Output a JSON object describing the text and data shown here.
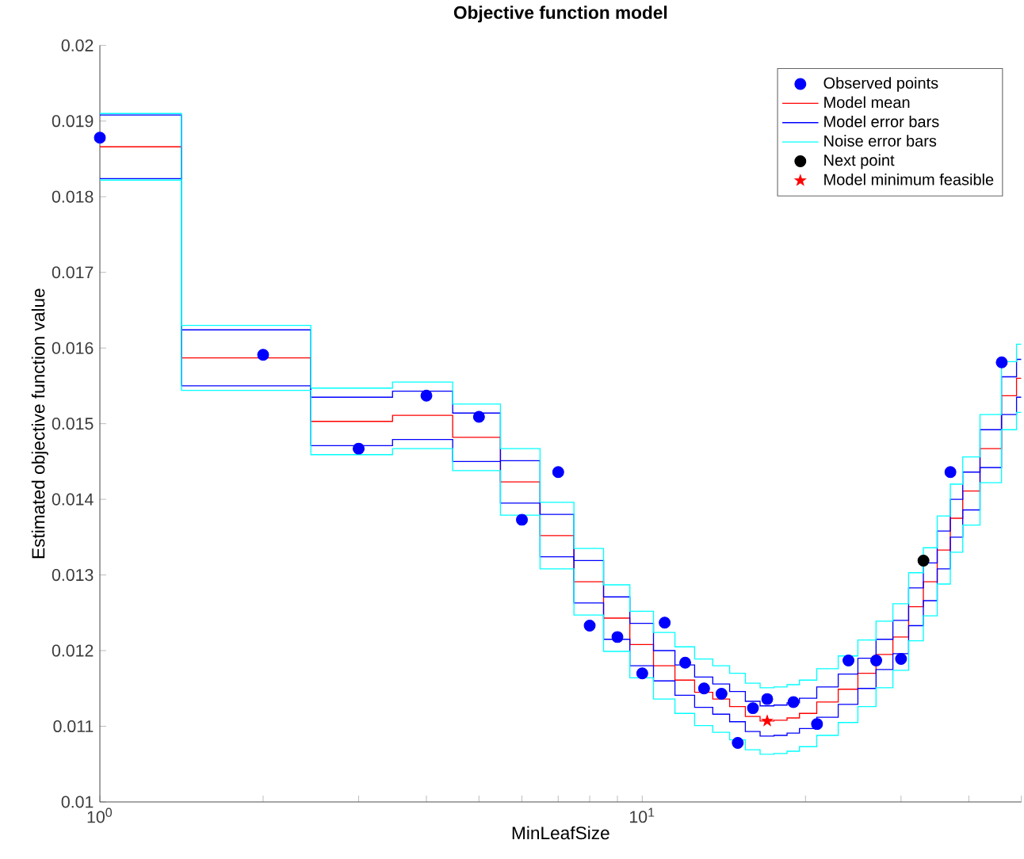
{
  "chart_data": {
    "type": "step",
    "title": "Objective function model",
    "xlabel": "MinLeafSize",
    "ylabel": "Estimated objective function value",
    "log": "x",
    "xlim": [
      1,
      50
    ],
    "ylim": [
      0.01,
      0.02
    ],
    "xticks": [
      {
        "value": 1,
        "label": "10$^{0}$"
      },
      {
        "value": 2,
        "label": null
      },
      {
        "value": 3,
        "label": null
      },
      {
        "value": 4,
        "label": null
      },
      {
        "value": 5,
        "label": null
      },
      {
        "value": 6,
        "label": null
      },
      {
        "value": 7,
        "label": null
      },
      {
        "value": 8,
        "label": null
      },
      {
        "value": 9,
        "label": null
      },
      {
        "value": 10,
        "label": "10$^{1}$"
      },
      {
        "value": 20,
        "label": null
      },
      {
        "value": 30,
        "label": null
      },
      {
        "value": 40,
        "label": null
      },
      {
        "value": 50,
        "label": null
      }
    ],
    "yticks": [
      0.01,
      0.011,
      0.012,
      0.013,
      0.014,
      0.015,
      0.016,
      0.017,
      0.018,
      0.019,
      0.02
    ],
    "legend": "top right",
    "grid": false,
    "series": [
      {
        "type": "scatter",
        "name": "Observed points",
        "color": "#0000ff",
        "marker": "circle",
        "x": [
          1,
          2,
          3,
          4,
          5,
          6,
          7,
          8,
          9,
          10,
          11,
          12,
          13,
          14,
          15,
          16,
          17,
          19,
          21,
          24,
          27,
          30,
          37,
          46
        ],
        "values": [
          0.01878,
          0.01591,
          0.01467,
          0.01537,
          0.01509,
          0.01373,
          0.01436,
          0.01233,
          0.01218,
          0.0117,
          0.01237,
          0.01184,
          0.0115,
          0.01143,
          0.01078,
          0.01124,
          0.01136,
          0.01132,
          0.01103,
          0.01187,
          0.01187,
          0.01189,
          0.01436,
          0.01581
        ]
      },
      {
        "name": "Model mean",
        "color": "#ff0000",
        "x": [
          1,
          2,
          3,
          4,
          5,
          6,
          7,
          8,
          9,
          10,
          11,
          12,
          13,
          14,
          15,
          16,
          17,
          18,
          19,
          20,
          22,
          24,
          26,
          28,
          30,
          32,
          34,
          36,
          38,
          40,
          44,
          48,
          50
        ],
        "values": [
          0.01866,
          0.01587,
          0.01503,
          0.01511,
          0.01482,
          0.01423,
          0.01352,
          0.01291,
          0.01243,
          0.01208,
          0.0118,
          0.01161,
          0.01145,
          0.01136,
          0.01126,
          0.01113,
          0.01107,
          0.01108,
          0.01111,
          0.01117,
          0.01132,
          0.01149,
          0.0117,
          0.01195,
          0.01218,
          0.01258,
          0.01291,
          0.01333,
          0.01375,
          0.01411,
          0.01467,
          0.01537,
          0.0156
        ]
      },
      {
        "name": "Model error bars",
        "color": "#0000ff",
        "x": [
          1,
          2,
          3,
          4,
          5,
          6,
          7,
          8,
          9,
          10,
          11,
          12,
          13,
          14,
          15,
          16,
          17,
          18,
          19,
          20,
          22,
          24,
          26,
          28,
          30,
          32,
          34,
          36,
          38,
          40,
          44,
          48,
          50
        ],
        "values": [
          0.01908,
          0.01624,
          0.01535,
          0.01543,
          0.01514,
          0.01451,
          0.0138,
          0.01319,
          0.01271,
          0.01236,
          0.012,
          0.01181,
          0.01165,
          0.01156,
          0.01146,
          0.01133,
          0.01127,
          0.01128,
          0.01131,
          0.01137,
          0.01152,
          0.01169,
          0.0119,
          0.01215,
          0.0124,
          0.01283,
          0.01316,
          0.01358,
          0.014,
          0.01436,
          0.01492,
          0.01562,
          0.01585
        ]
      },
      {
        "color": "#0000ff",
        "x": [
          1,
          2,
          3,
          4,
          5,
          6,
          7,
          8,
          9,
          10,
          11,
          12,
          13,
          14,
          15,
          16,
          17,
          18,
          19,
          20,
          22,
          24,
          26,
          28,
          30,
          32,
          34,
          36,
          38,
          40,
          44,
          48,
          50
        ],
        "values": [
          0.01824,
          0.0155,
          0.01471,
          0.01479,
          0.0145,
          0.01395,
          0.01324,
          0.01263,
          0.01215,
          0.0118,
          0.0116,
          0.01141,
          0.01125,
          0.01116,
          0.01106,
          0.01093,
          0.01087,
          0.01088,
          0.01091,
          0.01097,
          0.01112,
          0.01129,
          0.0115,
          0.01175,
          0.01196,
          0.01233,
          0.01266,
          0.01308,
          0.0135,
          0.01386,
          0.01442,
          0.01512,
          0.01535
        ]
      },
      {
        "name": "Noise error bars",
        "color": "#00ffff",
        "x": [
          1,
          2,
          3,
          4,
          5,
          6,
          7,
          8,
          9,
          10,
          11,
          12,
          13,
          14,
          15,
          16,
          17,
          18,
          19,
          20,
          22,
          24,
          26,
          28,
          30,
          32,
          34,
          36,
          38,
          40,
          44,
          48,
          50
        ],
        "values": [
          0.0191,
          0.0163,
          0.01547,
          0.01555,
          0.01526,
          0.01467,
          0.01396,
          0.01335,
          0.01287,
          0.01252,
          0.01224,
          0.01205,
          0.01189,
          0.0118,
          0.0117,
          0.01157,
          0.01151,
          0.01152,
          0.01155,
          0.01161,
          0.01176,
          0.01193,
          0.01214,
          0.01239,
          0.01262,
          0.01303,
          0.01336,
          0.01378,
          0.0142,
          0.01456,
          0.01512,
          0.01582,
          0.01605
        ]
      },
      {
        "color": "#00ffff",
        "x": [
          1,
          2,
          3,
          4,
          5,
          6,
          7,
          8,
          9,
          10,
          11,
          12,
          13,
          14,
          15,
          16,
          17,
          18,
          19,
          20,
          22,
          24,
          26,
          28,
          30,
          32,
          34,
          36,
          38,
          40,
          44,
          48,
          50
        ],
        "values": [
          0.01822,
          0.01544,
          0.01459,
          0.01467,
          0.01438,
          0.01379,
          0.01308,
          0.01247,
          0.01199,
          0.01164,
          0.01136,
          0.01117,
          0.01101,
          0.01092,
          0.01082,
          0.01069,
          0.01063,
          0.01064,
          0.01067,
          0.01073,
          0.01088,
          0.01105,
          0.01126,
          0.01151,
          0.01174,
          0.01213,
          0.01246,
          0.01288,
          0.0133,
          0.01366,
          0.01422,
          0.01492,
          0.01515
        ]
      },
      {
        "type": "scatter",
        "name": "Next point",
        "color": "#000000",
        "marker": "circle",
        "x": [
          33
        ],
        "values": [
          0.01319
        ]
      },
      {
        "type": "scatter",
        "name": "Model minimum feasible",
        "color": "#ff0000",
        "marker": "star",
        "x": [
          17
        ],
        "values": [
          0.01107
        ]
      }
    ]
  }
}
